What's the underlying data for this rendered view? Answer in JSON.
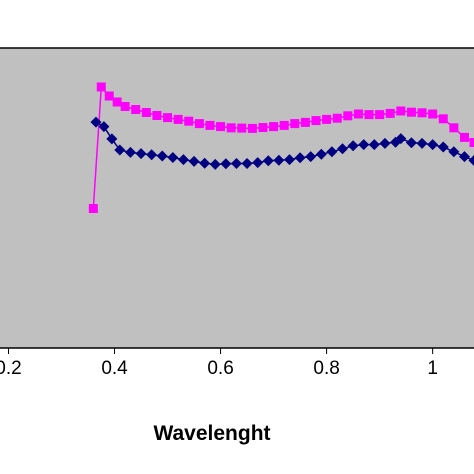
{
  "chart_data": {
    "type": "line",
    "title": "",
    "xlabel": "Wavelenght",
    "ylabel": "",
    "xlim": [
      0.184,
      1.078
    ],
    "ylim": [
      0,
      1
    ],
    "grid": false,
    "plot_background": "#c0c0c0",
    "x_ticks": [
      {
        "value": 0.2,
        "label": "0.2"
      },
      {
        "value": 0.4,
        "label": "0.4"
      },
      {
        "value": 0.6,
        "label": "0.6"
      },
      {
        "value": 0.8,
        "label": "0.8"
      },
      {
        "value": 1.0,
        "label": "1"
      }
    ],
    "series": [
      {
        "color": "#ff00ff",
        "marker": "square",
        "points": [
          [
            0.36,
            0.465
          ],
          [
            0.375,
            0.87
          ],
          [
            0.39,
            0.84
          ],
          [
            0.405,
            0.82
          ],
          [
            0.42,
            0.805
          ],
          [
            0.44,
            0.795
          ],
          [
            0.46,
            0.785
          ],
          [
            0.48,
            0.775
          ],
          [
            0.5,
            0.768
          ],
          [
            0.52,
            0.762
          ],
          [
            0.54,
            0.756
          ],
          [
            0.56,
            0.748
          ],
          [
            0.58,
            0.742
          ],
          [
            0.6,
            0.738
          ],
          [
            0.62,
            0.734
          ],
          [
            0.64,
            0.733
          ],
          [
            0.66,
            0.732
          ],
          [
            0.68,
            0.735
          ],
          [
            0.7,
            0.738
          ],
          [
            0.72,
            0.742
          ],
          [
            0.74,
            0.748
          ],
          [
            0.76,
            0.752
          ],
          [
            0.78,
            0.758
          ],
          [
            0.8,
            0.762
          ],
          [
            0.82,
            0.766
          ],
          [
            0.84,
            0.774
          ],
          [
            0.86,
            0.78
          ],
          [
            0.88,
            0.778
          ],
          [
            0.9,
            0.778
          ],
          [
            0.92,
            0.782
          ],
          [
            0.94,
            0.79
          ],
          [
            0.96,
            0.786
          ],
          [
            0.98,
            0.784
          ],
          [
            1.0,
            0.78
          ],
          [
            1.02,
            0.764
          ],
          [
            1.04,
            0.734
          ],
          [
            1.06,
            0.702
          ],
          [
            1.078,
            0.685
          ]
        ]
      },
      {
        "color": "#000080",
        "marker": "diamond",
        "points": [
          [
            0.365,
            0.753
          ],
          [
            0.38,
            0.738
          ],
          [
            0.395,
            0.697
          ],
          [
            0.41,
            0.66
          ],
          [
            0.43,
            0.652
          ],
          [
            0.45,
            0.648
          ],
          [
            0.47,
            0.644
          ],
          [
            0.49,
            0.64
          ],
          [
            0.51,
            0.635
          ],
          [
            0.53,
            0.628
          ],
          [
            0.55,
            0.622
          ],
          [
            0.57,
            0.616
          ],
          [
            0.59,
            0.612
          ],
          [
            0.61,
            0.614
          ],
          [
            0.63,
            0.615
          ],
          [
            0.65,
            0.615
          ],
          [
            0.67,
            0.618
          ],
          [
            0.69,
            0.624
          ],
          [
            0.71,
            0.626
          ],
          [
            0.73,
            0.628
          ],
          [
            0.75,
            0.634
          ],
          [
            0.77,
            0.638
          ],
          [
            0.79,
            0.646
          ],
          [
            0.81,
            0.654
          ],
          [
            0.83,
            0.664
          ],
          [
            0.85,
            0.674
          ],
          [
            0.87,
            0.678
          ],
          [
            0.89,
            0.678
          ],
          [
            0.91,
            0.682
          ],
          [
            0.93,
            0.686
          ],
          [
            0.94,
            0.698
          ],
          [
            0.96,
            0.684
          ],
          [
            0.98,
            0.682
          ],
          [
            1.0,
            0.678
          ],
          [
            1.02,
            0.67
          ],
          [
            1.04,
            0.654
          ],
          [
            1.06,
            0.638
          ],
          [
            1.078,
            0.625
          ]
        ]
      }
    ]
  }
}
